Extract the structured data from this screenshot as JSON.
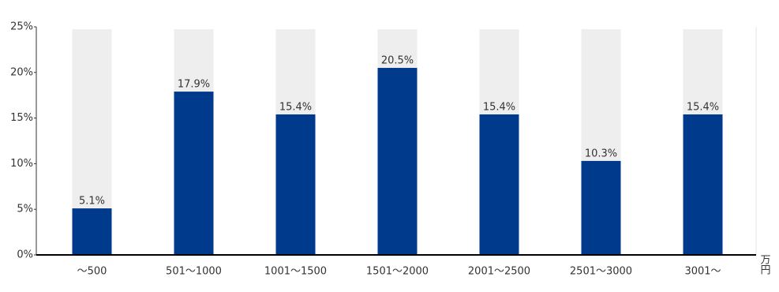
{
  "chart_data": {
    "type": "bar",
    "categories": [
      "～500",
      "501～1000",
      "1001～1500",
      "1501～2000",
      "2001～2500",
      "2501～3000",
      "3001～"
    ],
    "values": [
      5.1,
      17.9,
      15.4,
      20.5,
      15.4,
      10.3,
      15.4
    ],
    "value_labels": [
      "5.1%",
      "17.9%",
      "15.4%",
      "20.5%",
      "15.4%",
      "10.3%",
      "15.4%"
    ],
    "color": "#003a8c",
    "background_color": "#eeeeee",
    "x_label": "万円",
    "ylim": [
      0,
      25
    ],
    "yticks": [
      {
        "value": 0,
        "label": "0%"
      },
      {
        "value": 5,
        "label": "5%"
      },
      {
        "value": 10,
        "label": "10%"
      },
      {
        "value": 15,
        "label": "15%"
      },
      {
        "value": 20,
        "label": "20%"
      },
      {
        "value": 25,
        "label": "25%"
      }
    ],
    "grid": false
  }
}
